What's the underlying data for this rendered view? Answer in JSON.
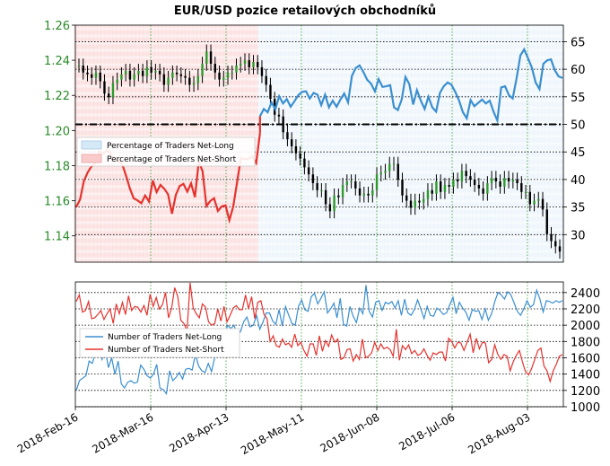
{
  "chart_data": [
    {
      "type": "line",
      "title": "EUR/USD pozice retailových obchodníků",
      "y_left_ticks": [
        "1.14",
        "1.16",
        "1.18",
        "1.20",
        "1.22",
        "1.24",
        "1.26"
      ],
      "y_left_range": [
        1.125,
        1.26
      ],
      "y_right_ticks": [
        "30",
        "35",
        "40",
        "45",
        "50",
        "55",
        "60",
        "65"
      ],
      "y_right_range": [
        25,
        68
      ],
      "x_ticks": [
        "2018-Feb-16",
        "2018-Mar-16",
        "2018-Apr-13",
        "2018-May-11",
        "2018-Jun-08",
        "2018-Jul-06",
        "2018-Aug-03"
      ],
      "reference_line": 50,
      "legend": [
        "Percentage of Traders Net-Long",
        "Percentage of Traders Net-Short"
      ],
      "grid": true,
      "price_close": [
        1.237,
        1.233,
        1.232,
        1.23,
        1.233,
        1.228,
        1.221,
        1.219,
        1.227,
        1.229,
        1.232,
        1.234,
        1.229,
        1.232,
        1.234,
        1.231,
        1.236,
        1.233,
        1.234,
        1.232,
        1.226,
        1.23,
        1.233,
        1.232,
        1.231,
        1.23,
        1.226,
        1.227,
        1.231,
        1.238,
        1.245,
        1.238,
        1.233,
        1.229,
        1.23,
        1.233,
        1.233,
        1.237,
        1.238,
        1.24,
        1.236,
        1.239,
        1.236,
        1.231,
        1.226,
        1.218,
        1.209,
        1.208,
        1.199,
        1.195,
        1.191,
        1.187,
        1.184,
        1.179,
        1.175,
        1.17,
        1.166,
        1.166,
        1.158,
        1.154,
        1.163,
        1.162,
        1.169,
        1.171,
        1.171,
        1.167,
        1.163,
        1.164,
        1.163,
        1.166,
        1.175,
        1.176,
        1.177,
        1.181,
        1.181,
        1.172,
        1.163,
        1.16,
        1.156,
        1.16,
        1.159,
        1.161,
        1.166,
        1.164,
        1.171,
        1.165,
        1.169,
        1.168,
        1.172,
        1.171,
        1.177,
        1.174,
        1.172,
        1.169,
        1.167,
        1.164,
        1.17,
        1.173,
        1.171,
        1.168,
        1.173,
        1.171,
        1.172,
        1.17,
        1.165,
        1.165,
        1.158,
        1.16,
        1.161,
        1.155,
        1.141,
        1.137,
        1.134,
        1.131
      ],
      "net_long_pct": [
        null,
        null,
        null,
        null,
        null,
        null,
        null,
        null,
        null,
        null,
        null,
        null,
        null,
        null,
        null,
        null,
        null,
        null,
        null,
        null,
        null,
        null,
        null,
        null,
        null,
        null,
        null,
        null,
        null,
        null,
        null,
        null,
        null,
        null,
        null,
        null,
        null,
        null,
        null,
        null,
        null,
        null,
        null,
        null,
        null,
        null,
        null,
        null,
        51.5,
        52.8,
        52.2,
        54.0,
        52.7,
        55.1,
        53.8,
        54.6,
        53.2,
        54.2,
        55.3,
        55.9,
        56.0,
        54.7,
        55.7,
        55.4,
        53.5,
        55.4,
        53.1,
        54.3,
        53.2,
        54.5,
        55.6,
        54.0,
        58.8,
        60.2,
        60.7,
        59.5,
        58.1,
        57.4,
        56.0,
        58.2,
        56.8,
        56.9,
        57.1,
        53.1,
        52.6,
        54.5,
        58.6,
        57.3,
        53.6,
        56.2,
        54.3,
        52.8,
        55.0,
        53.1,
        52.3,
        55.7,
        56.9,
        57.6,
        57.2,
        55.9,
        54.3,
        52.2,
        51.1,
        54.4,
        53.3,
        53.9,
        54.5,
        53.8,
        54.3,
        52.3,
        50.7,
        56.7,
        56.9,
        55.3,
        54.7,
        58.3,
        62.5,
        63.6,
        62.0,
        60.3,
        57.6,
        56.4,
        61.0,
        61.6,
        61.8,
        59.8,
        58.7,
        58.4
      ],
      "net_short_pct": [
        35.0,
        36.4,
        39.7,
        41.3,
        42.4,
        43.0,
        45.1,
        44.7,
        45.3,
        44.7,
        43.6,
        43.4,
        42.8,
        40.7,
        38.4,
        36.6,
        36.2,
        35.7,
        37.1,
        36.0,
        39.8,
        37.7,
        39.0,
        38.3,
        37.3,
        33.8,
        37.2,
        38.8,
        39.2,
        37.8,
        39.3,
        36.8,
        43.3,
        41.5,
        35.2,
        36.1,
        36.6,
        34.3,
        35.1,
        35.3,
        32.6,
        35.1,
        39.4,
        43.9,
        43.7,
        43.8,
        44.2,
        43.0,
        48.5
      ],
      "net_long_count": [
        1200,
        1320,
        1350,
        1380,
        1560,
        1530,
        1660,
        1730,
        1580,
        1700,
        1480,
        1600,
        1400,
        1560,
        1280,
        1230,
        1300,
        1320,
        1290,
        1300,
        1510,
        1460,
        1380,
        1350,
        1400,
        1520,
        1230,
        1210,
        1160,
        1440,
        1320,
        1360,
        1420,
        1340,
        1460,
        1470,
        1450,
        1640,
        1500,
        1440,
        1420,
        1530,
        1430,
        1600,
        1850,
        1860,
        1870,
        2000,
        1960,
        2000,
        1880,
        1920,
        2040,
        2100,
        1980,
        2000,
        2120,
        1950,
        2040,
        2150,
        2150,
        2050,
        2010,
        2190,
        1990,
        2230,
        2120,
        2020,
        2000,
        2230,
        2310,
        2190,
        2170,
        2350,
        2390,
        2260,
        2330,
        2410,
        2150,
        2200,
        2270,
        2090,
        2330,
        2010,
        1990,
        2230,
        2110,
        2030,
        2210,
        2140,
        2490,
        2170,
        2100,
        2280,
        2300,
        2180,
        2280,
        2260,
        2290,
        2210,
        2300,
        2120,
        2320,
        2150,
        2120,
        2190,
        2310,
        2200,
        2080,
        2230,
        2120,
        2110,
        2210,
        2180,
        2130,
        2150,
        2250,
        2340,
        2140,
        2280,
        2210,
        2160,
        2060,
        2190,
        2170,
        2180,
        2070,
        2200,
        2060,
        2140,
        2290,
        2400,
        2370,
        2320,
        2410,
        2370,
        2270,
        2170,
        2120,
        2200,
        2300,
        2220,
        2250,
        2430,
        2320,
        2160,
        2300,
        2290,
        2270,
        2300,
        2280,
        2300
      ],
      "net_short_count": [
        2290,
        2370,
        2160,
        2180,
        2290,
        2080,
        2090,
        2130,
        2180,
        2070,
        2140,
        2200,
        2020,
        2260,
        2140,
        2280,
        2130,
        2360,
        2180,
        2230,
        2220,
        2160,
        2240,
        2120,
        2380,
        2230,
        2340,
        2200,
        2250,
        2400,
        2090,
        2210,
        2460,
        2350,
        2060,
        2020,
        1930,
        2520,
        2210,
        2140,
        2090,
        2260,
        2220,
        2040,
        2000,
        2020,
        2200,
        2050,
        2230,
        2040,
        2120,
        2210,
        2240,
        2190,
        2190,
        2370,
        2200,
        2350,
        2080,
        2280,
        2300,
        2130,
        2080,
        1800,
        1870,
        1750,
        1730,
        1830,
        1760,
        1780,
        1730,
        1890,
        1750,
        1790,
        1690,
        1620,
        1770,
        1770,
        1630,
        1870,
        1680,
        1810,
        1740,
        1880,
        1790,
        1830,
        1580,
        1600,
        1700,
        1710,
        1560,
        1640,
        1580,
        1830,
        1600,
        1620,
        1660,
        1790,
        1690,
        1770,
        1710,
        1730,
        1700,
        1620,
        1950,
        1570,
        1750,
        1700,
        1760,
        1650,
        1690,
        1630,
        1650,
        1710,
        1630,
        1570,
        1660,
        1640,
        1670,
        1670,
        1560,
        1840,
        1800,
        1720,
        1790,
        1780,
        1690,
        1790,
        1890,
        1660,
        1840,
        1710,
        1790,
        1780,
        1540,
        1580,
        1760,
        1640,
        1580,
        1640,
        1620,
        1440,
        1550,
        1630,
        1690,
        1550,
        1430,
        1390,
        1470,
        1580,
        1690,
        1720,
        1500,
        1440,
        1310,
        1440,
        1520,
        1620,
        1640
      ]
    },
    {
      "type": "line",
      "y_ticks": [
        "1000",
        "1200",
        "1400",
        "1600",
        "1800",
        "2000",
        "2200",
        "2400"
      ],
      "y_range": [
        1000,
        2530
      ],
      "legend": [
        "Number of Traders Net-Long",
        "Number of Traders Net-Short"
      ],
      "grid": true
    }
  ],
  "colors": {
    "long_line": "#3b8fd0",
    "long_fill": "#d6e9f7",
    "short_line": "#e5332e",
    "short_fill": "#f9cccb",
    "price_tick": "#000000",
    "price_body_up": "#2d9a2d",
    "tick_green": "#2a8a2a",
    "grid_line": "#000000"
  }
}
